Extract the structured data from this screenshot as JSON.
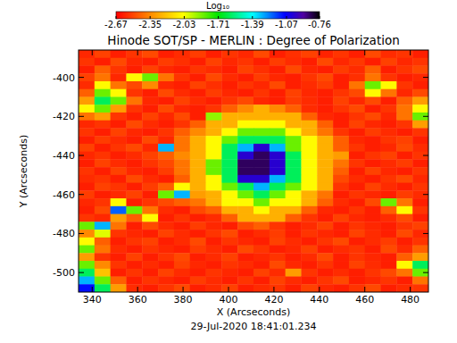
{
  "chart_data": {
    "type": "heatmap",
    "title": "Hinode SOT/SP - MERLIN : Degree of Polarization",
    "x_label": "X (Arcseconds)",
    "y_label": "Y (Arcseconds)",
    "timestamp": "29-Jul-2020 18:41:01.234",
    "colorbar_label": "Log₁₀",
    "colorbar_range": [
      -2.67,
      -0.76
    ],
    "colorbar_ticks": [
      -2.67,
      -2.35,
      -2.03,
      -1.71,
      -1.39,
      -1.07,
      -0.76
    ],
    "xlim": [
      334,
      488
    ],
    "ylim": [
      -510,
      -386
    ],
    "xticks": [
      340,
      360,
      380,
      400,
      420,
      440,
      460,
      480
    ],
    "yticks": [
      -500,
      -480,
      -460,
      -440,
      -420,
      -400
    ],
    "x": [
      337.5,
      344.5,
      351.5,
      358.5,
      365.5,
      372.5,
      379.5,
      386.5,
      393.5,
      400.5,
      407.5,
      414.5,
      421.5,
      428.5,
      435.5,
      442.5,
      449.5,
      456.5,
      463.5,
      470.5,
      477.5,
      484.5
    ],
    "y": [
      -388,
      -392,
      -396,
      -400,
      -404,
      -408,
      -412,
      -416,
      -420,
      -424,
      -428,
      -432,
      -436,
      -440,
      -444,
      -448,
      -452,
      -456,
      -460,
      -464,
      -468,
      -472,
      -476,
      -480,
      -484,
      -488,
      -492,
      -496,
      -500,
      -504,
      -508
    ],
    "values": [
      [
        -2.58,
        -2.52,
        -2.6,
        -2.55,
        -2.5,
        -2.6,
        -2.57,
        -2.53,
        -2.6,
        -2.55,
        -2.58,
        -2.5,
        -2.6,
        -2.56,
        -2.52,
        -2.59,
        -2.55,
        -2.6,
        -2.5,
        -2.57,
        -2.55,
        -2.6
      ],
      [
        -2.55,
        -2.6,
        -2.5,
        -2.58,
        -2.6,
        -2.53,
        -2.56,
        -2.6,
        -2.52,
        -2.58,
        -2.55,
        -2.6,
        -2.53,
        -2.57,
        -2.6,
        -2.5,
        -2.58,
        -2.54,
        -2.6,
        -2.52,
        -2.58,
        -2.55
      ],
      [
        -2.6,
        -2.45,
        -2.55,
        -2.6,
        -2.52,
        -2.58,
        -2.6,
        -2.55,
        -2.57,
        -2.6,
        -2.52,
        -2.56,
        -2.6,
        -2.5,
        -2.58,
        -2.6,
        -2.53,
        -2.57,
        -2.45,
        -2.6,
        -2.55,
        -2.5
      ],
      [
        -2.52,
        -2.4,
        -2.58,
        -2.05,
        -1.85,
        -2.4,
        -2.55,
        -2.6,
        -2.5,
        -2.57,
        -2.6,
        -2.53,
        -2.58,
        -2.6,
        -2.55,
        -2.5,
        -2.6,
        -2.56,
        -2.4,
        -2.55,
        -2.6,
        -2.58
      ],
      [
        -2.57,
        -2.05,
        -2.4,
        -2.5,
        -2.35,
        -2.58,
        -2.6,
        -2.52,
        -2.56,
        -2.6,
        -2.55,
        -2.58,
        -2.5,
        -2.6,
        -2.57,
        -2.53,
        -2.6,
        -2.4,
        -1.85,
        -2.05,
        -2.55,
        -2.6
      ],
      [
        -2.45,
        -1.85,
        -2.05,
        -2.55,
        -2.6,
        -2.5,
        -2.57,
        -2.6,
        -2.53,
        -2.58,
        -2.6,
        -2.55,
        -2.6,
        -2.52,
        -2.58,
        -2.6,
        -2.55,
        -2.5,
        -2.05,
        -2.4,
        -2.58,
        -2.5
      ],
      [
        -2.3,
        -1.6,
        -1.85,
        -2.4,
        -2.58,
        -2.6,
        -2.52,
        -2.57,
        -2.6,
        -2.55,
        -2.5,
        -2.58,
        -2.6,
        -2.53,
        -2.57,
        -2.6,
        -2.52,
        -2.58,
        -2.5,
        -2.6,
        -2.45,
        -2.3
      ],
      [
        -2.05,
        -1.85,
        -2.3,
        -2.55,
        -2.6,
        -2.5,
        -2.58,
        -2.6,
        -2.55,
        -2.45,
        -2.35,
        -2.25,
        -2.35,
        -2.45,
        -2.57,
        -2.6,
        -2.55,
        -2.5,
        -2.6,
        -2.55,
        -2.4,
        -2.05
      ],
      [
        -2.4,
        -2.3,
        -2.55,
        -2.6,
        -2.52,
        -2.58,
        -2.5,
        -2.6,
        -1.9,
        -2.25,
        -2.25,
        -2.25,
        -2.25,
        -2.25,
        -2.45,
        -2.58,
        -2.6,
        -2.55,
        -2.5,
        -2.58,
        -2.4,
        -1.85
      ],
      [
        -2.58,
        -2.55,
        -2.6,
        -2.5,
        -2.57,
        -2.6,
        -2.55,
        -2.45,
        -2.25,
        -2.25,
        -2.05,
        -2.05,
        -2.05,
        -2.25,
        -2.25,
        -2.45,
        -2.6,
        -2.52,
        -2.58,
        -2.6,
        -2.55,
        -2.3
      ],
      [
        -2.55,
        -2.6,
        -2.52,
        -2.58,
        -2.6,
        -2.55,
        -2.45,
        -2.35,
        -2.25,
        -2.05,
        -1.85,
        -1.85,
        -1.85,
        -2.05,
        -2.25,
        -2.4,
        -2.55,
        -2.6,
        -2.53,
        -2.57,
        -2.6,
        -2.55
      ],
      [
        -2.6,
        -2.53,
        -2.57,
        -2.6,
        -2.5,
        -2.58,
        -2.4,
        -2.25,
        -2.05,
        -1.85,
        -1.6,
        -1.6,
        -1.6,
        -1.85,
        -2.05,
        -2.25,
        -2.45,
        -2.58,
        -2.6,
        -2.55,
        -2.52,
        -2.6
      ],
      [
        -2.52,
        -2.6,
        -2.55,
        -2.5,
        -2.58,
        -1.3,
        -2.4,
        -2.25,
        -2.05,
        -1.6,
        -1.3,
        -1.0,
        -1.3,
        -1.85,
        -2.05,
        -2.25,
        -2.45,
        -2.55,
        -2.6,
        -2.58,
        -2.5,
        -2.57
      ],
      [
        -2.58,
        -2.55,
        -2.6,
        -2.57,
        -2.52,
        -2.45,
        -2.35,
        -2.25,
        -2.05,
        -1.6,
        -1.0,
        -0.85,
        -1.0,
        -1.6,
        -2.05,
        -2.25,
        -2.3,
        -2.6,
        -2.55,
        -2.52,
        -2.6,
        -2.55
      ],
      [
        -2.6,
        -2.52,
        -2.57,
        -2.6,
        -2.55,
        -2.5,
        -2.4,
        -2.25,
        -1.85,
        -1.6,
        -0.85,
        -0.85,
        -1.0,
        -1.6,
        -2.05,
        -2.25,
        -2.4,
        -2.55,
        -2.6,
        -2.57,
        -2.53,
        -2.6
      ],
      [
        -2.55,
        -2.6,
        -2.52,
        -2.58,
        -2.6,
        -2.53,
        -2.4,
        -2.25,
        -1.85,
        -1.6,
        -0.85,
        -0.85,
        -1.0,
        -1.6,
        -2.05,
        -2.25,
        -2.45,
        -2.6,
        -2.52,
        -2.58,
        -2.6,
        -2.55
      ],
      [
        -2.57,
        -2.55,
        -2.6,
        -2.5,
        -2.57,
        -2.6,
        -2.45,
        -2.25,
        -2.05,
        -1.6,
        -1.0,
        -1.0,
        -1.3,
        -1.6,
        -2.05,
        -2.25,
        -2.5,
        -2.57,
        -2.6,
        -2.55,
        -2.5,
        -2.58
      ],
      [
        -2.6,
        -2.52,
        -2.55,
        -2.6,
        -2.53,
        -2.45,
        -2.05,
        -2.25,
        -2.05,
        -1.85,
        -1.6,
        -1.3,
        -1.6,
        -1.85,
        -2.05,
        -2.25,
        -2.55,
        -2.6,
        -2.52,
        -2.57,
        -2.6,
        -2.55
      ],
      [
        -2.53,
        -2.6,
        -2.57,
        -2.52,
        -2.6,
        -1.85,
        -1.3,
        -2.3,
        -2.25,
        -2.05,
        -1.85,
        -1.6,
        -1.85,
        -2.05,
        -2.25,
        -2.4,
        -2.6,
        -2.55,
        -2.58,
        -2.6,
        -2.53,
        -2.57
      ],
      [
        -2.58,
        -2.55,
        -2.05,
        -2.6,
        -2.55,
        -2.5,
        -2.45,
        -2.4,
        -2.25,
        -2.05,
        -2.05,
        -1.85,
        -2.05,
        -2.05,
        -2.25,
        -2.45,
        -2.57,
        -2.6,
        -2.5,
        -1.85,
        -2.4,
        -2.6
      ],
      [
        -2.6,
        -2.5,
        -1.2,
        -1.85,
        -2.4,
        -2.57,
        -2.6,
        -2.5,
        -2.45,
        -2.25,
        -2.25,
        -2.05,
        -2.25,
        -2.25,
        -2.45,
        -2.58,
        -2.6,
        -2.55,
        -2.6,
        -2.45,
        -2.05,
        -2.55
      ],
      [
        -2.55,
        -2.58,
        -2.3,
        -2.45,
        -2.05,
        -2.6,
        -2.55,
        -2.6,
        -2.57,
        -2.45,
        -2.25,
        -2.25,
        -2.25,
        -2.45,
        -2.55,
        -2.6,
        -2.52,
        -2.58,
        -2.6,
        -2.57,
        -2.5,
        -2.6
      ],
      [
        -1.85,
        -1.3,
        -2.4,
        -2.6,
        -2.5,
        -2.57,
        -2.6,
        -2.53,
        -2.58,
        -2.6,
        -2.5,
        -2.45,
        -2.55,
        -2.6,
        -2.57,
        -2.52,
        -2.6,
        -2.55,
        -2.58,
        -2.6,
        -2.55,
        -2.52
      ],
      [
        -2.35,
        -2.0,
        -2.55,
        -2.58,
        -2.6,
        -2.52,
        -2.57,
        -2.6,
        -2.55,
        -2.5,
        -2.6,
        -2.57,
        -2.53,
        -2.6,
        -2.55,
        -2.58,
        -2.6,
        -2.52,
        -2.57,
        -2.6,
        -2.5,
        -2.58
      ],
      [
        -2.05,
        -2.45,
        -2.6,
        -2.55,
        -2.52,
        -2.6,
        -2.57,
        -2.5,
        -2.6,
        -2.55,
        -2.58,
        -2.6,
        -2.52,
        -2.57,
        -2.6,
        -2.55,
        -2.5,
        -2.6,
        -2.57,
        -2.53,
        -2.6,
        -2.55
      ],
      [
        -1.85,
        -2.4,
        -2.57,
        -2.6,
        -2.55,
        -2.58,
        -2.6,
        -2.53,
        -2.57,
        -2.6,
        -2.5,
        -2.55,
        -2.6,
        -2.58,
        -2.52,
        -2.6,
        -2.57,
        -2.55,
        -2.6,
        -2.5,
        -2.57,
        -2.45
      ],
      [
        -2.3,
        -2.55,
        -2.6,
        -2.52,
        -2.6,
        -2.55,
        -2.5,
        -2.6,
        -2.57,
        -2.52,
        -2.6,
        -2.58,
        -2.55,
        -2.6,
        -2.57,
        -2.5,
        -2.6,
        -2.55,
        -2.58,
        -2.6,
        -2.45,
        -2.3
      ],
      [
        -1.85,
        -2.35,
        -2.55,
        -2.6,
        -2.57,
        -2.6,
        -2.52,
        -2.58,
        -2.6,
        -2.55,
        -2.57,
        -2.6,
        -2.5,
        -2.58,
        -2.6,
        -2.55,
        -2.6,
        -2.52,
        -2.57,
        -2.6,
        -2.05,
        -1.6
      ],
      [
        -1.6,
        -2.2,
        -2.6,
        -2.55,
        -2.6,
        -2.52,
        -2.57,
        -2.6,
        -2.55,
        -2.58,
        -2.6,
        -2.52,
        -2.57,
        -2.3,
        -2.55,
        -2.6,
        -2.57,
        -2.6,
        -2.55,
        -2.5,
        -2.4,
        -1.85
      ],
      [
        -1.3,
        -1.85,
        -2.45,
        -2.6,
        -2.55,
        -2.58,
        -2.6,
        -2.53,
        -2.57,
        -2.6,
        -2.55,
        -2.6,
        -2.52,
        -2.57,
        -2.6,
        -2.55,
        -2.5,
        -2.6,
        -2.58,
        -2.55,
        -2.6,
        -2.4
      ],
      [
        -1.1,
        -1.6,
        -2.3,
        -2.57,
        -2.6,
        -2.55,
        -2.5,
        -2.6,
        -2.57,
        -2.52,
        -2.6,
        -2.57,
        -2.55,
        -2.6,
        -2.52,
        -2.58,
        -2.6,
        -2.55,
        -2.5,
        -2.6,
        -2.57,
        -2.55
      ]
    ]
  }
}
